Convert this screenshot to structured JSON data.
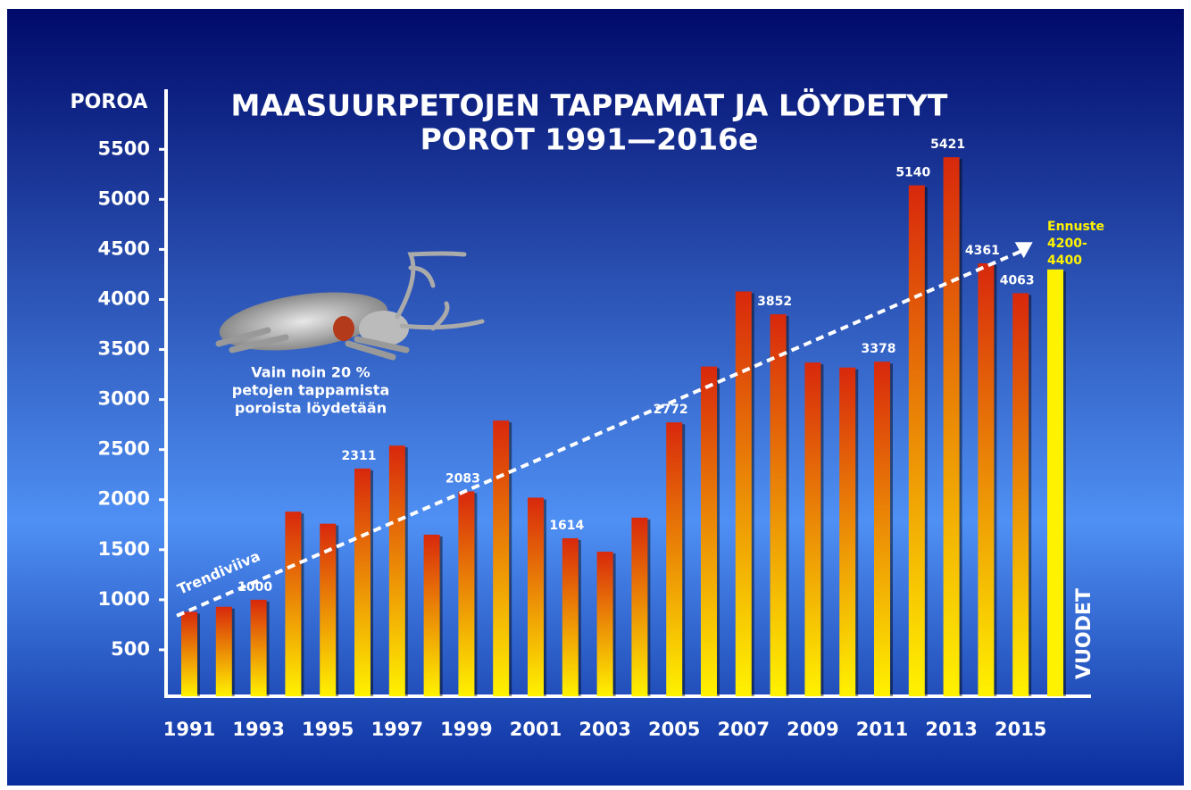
{
  "chart_data": {
    "type": "bar",
    "title": [
      "MAASUURPETOJEN TAPPAMAT JA LÖYDETYT",
      "POROT 1991—2016e"
    ],
    "y_label": "POROA",
    "x_label": "VUODET",
    "categories": [
      "1991",
      null,
      "1993",
      null,
      "1995",
      null,
      "1997",
      null,
      "1999",
      null,
      "2001",
      null,
      "2003",
      null,
      "2005",
      null,
      "2007",
      null,
      "2009",
      null,
      "2011",
      null,
      "2013",
      null,
      "2015",
      null
    ],
    "values": [
      880,
      930,
      1000,
      1880,
      1760,
      2311,
      2540,
      1650,
      2083,
      2790,
      2020,
      1614,
      1480,
      1820,
      2772,
      3330,
      4080,
      3852,
      3370,
      3320,
      3378,
      5140,
      5421,
      4361,
      4063,
      4300
    ],
    "value_labels": [
      null,
      null,
      "1000",
      null,
      null,
      "2311",
      null,
      null,
      "2083",
      null,
      null,
      "1614",
      null,
      null,
      "2772",
      null,
      null,
      "3852",
      null,
      null,
      "3378",
      "5140",
      "5421",
      "4361",
      "4063",
      null
    ],
    "colors": {
      "top": "#d8280c",
      "bottom": "#fff200",
      "forecast": "#fff200"
    },
    "forecast_index": 25,
    "forecast_label": [
      "Ennuste",
      "4200-",
      "4400"
    ],
    "ylim": [
      0,
      6100
    ],
    "yticks": [
      500,
      1000,
      1500,
      2000,
      2500,
      3000,
      3500,
      4000,
      4500,
      5000,
      5500
    ],
    "trend": {
      "label": "Trendiviiva",
      "start": 840,
      "end": 4480
    },
    "annotation": [
      "Vain noin 20 %",
      "petojen tappamista",
      "poroista löydetään"
    ]
  }
}
